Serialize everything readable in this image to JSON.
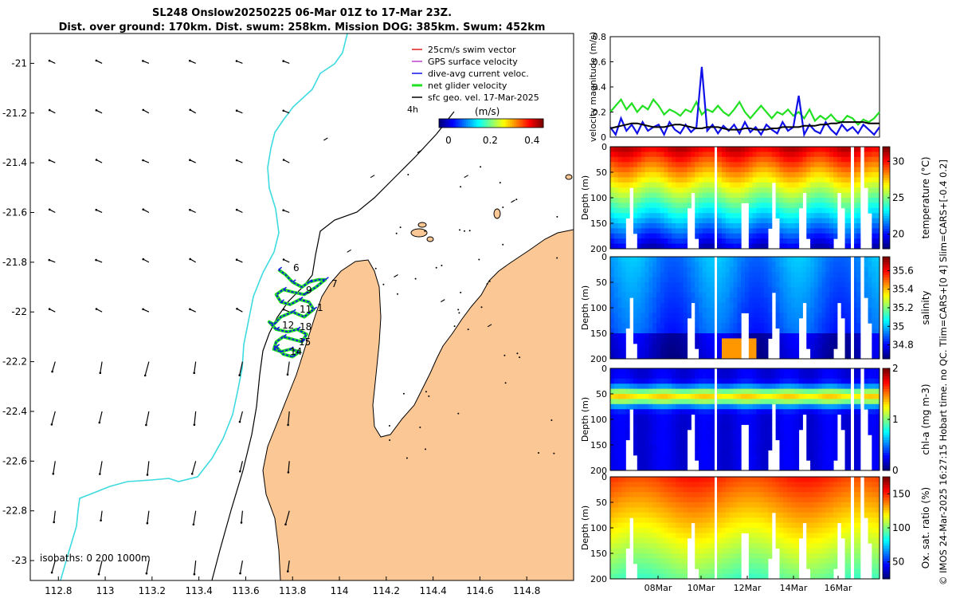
{
  "header": {
    "title_line1": "SL248 Onslow20250225 06-Mar 01Z to 17-Mar 23Z.",
    "title_line2": "Dist. over ground: 170km. Dist. swum: 258km. Mission DOG: 385km. Swum: 452km"
  },
  "footer": {
    "credit": "© IMOS 24-Mar-2025 16:27:15 Hobart time. no QC. Tlim=CARS+[0 4] Slim=CARS+[-0.4 0.2]"
  },
  "colors": {
    "land": "#fbc895",
    "coast_250m": "#3ddbe0",
    "swim_vector": "#e0201e",
    "gps_velocity": "#c03fd0",
    "dive_avg_current": "#1010e8",
    "net_glider_velocity": "#22e022",
    "sfc_geo_vel": "#000000"
  },
  "chart_data": [
    {
      "type": "map",
      "xlim": [
        112.68,
        115.0
      ],
      "ylim": [
        -23.08,
        -20.88
      ],
      "xticks": [
        "112.8",
        "113",
        "113.2",
        "113.4",
        "113.6",
        "113.8",
        "114",
        "114.2",
        "114.4",
        "114.6",
        "114.8"
      ],
      "xtick_values": [
        112.8,
        113.0,
        113.2,
        113.4,
        113.6,
        113.8,
        114.0,
        114.2,
        114.4,
        114.6,
        114.8
      ],
      "yticks": [
        "-21",
        "-21.2",
        "-21.4",
        "-21.6",
        "-21.8",
        "-22",
        "-22.2",
        "-22.4",
        "-22.6",
        "-22.8",
        "-23"
      ],
      "ytick_values": [
        -21.0,
        -21.2,
        -21.4,
        -21.6,
        -21.8,
        -22.0,
        -22.2,
        -22.4,
        -22.6,
        -22.8,
        -23.0
      ],
      "legend": [
        {
          "label": "25cm/s swim vector",
          "color": "#e0201e"
        },
        {
          "label": "GPS surface velocity",
          "color": "#c03fd0"
        },
        {
          "label": "dive-avg current veloc.",
          "color": "#1010e8"
        },
        {
          "label": "net glider velocity",
          "color": "#22e022"
        },
        {
          "label": "sfc geo. vel. 17-Mar-2025",
          "color": "#000000"
        }
      ],
      "legend_position": "top-right",
      "interval_label": "4h",
      "colorbar": {
        "label": "(m/s)",
        "ticks": [
          "0",
          "0.2",
          "0.4"
        ],
        "tick_values": [
          0,
          0.2,
          0.4
        ],
        "range": [
          0,
          0.5
        ]
      },
      "isobaths_label": "isobaths: 0   200  1000m",
      "track_labels": [
        "6",
        "9",
        "7",
        "1",
        "11",
        "12",
        "18",
        "15",
        "14"
      ],
      "track_lon": [
        113.74,
        113.77,
        113.8,
        113.84,
        113.87,
        113.91,
        113.94,
        113.9,
        113.85,
        113.8,
        113.76,
        113.73,
        113.75,
        113.79,
        113.83,
        113.87,
        113.89,
        113.85,
        113.8,
        113.75,
        113.72,
        113.7,
        113.73,
        113.78,
        113.82,
        113.86,
        113.84,
        113.8,
        113.76,
        113.73,
        113.72,
        113.75,
        113.79,
        113.83,
        113.8,
        113.76,
        113.73
      ],
      "track_lat": [
        -21.83,
        -21.85,
        -21.88,
        -21.9,
        -21.88,
        -21.87,
        -21.87,
        -21.9,
        -21.93,
        -21.92,
        -21.91,
        -21.93,
        -21.96,
        -21.97,
        -21.95,
        -21.96,
        -21.99,
        -22.02,
        -22.0,
        -22.02,
        -22.05,
        -22.04,
        -22.07,
        -22.08,
        -22.07,
        -22.09,
        -22.12,
        -22.11,
        -22.1,
        -22.12,
        -22.15,
        -22.16,
        -22.15,
        -22.16,
        -22.18,
        -22.17,
        -22.14
      ]
    },
    {
      "type": "line",
      "ylabel": "velocity magnitude (m/s)",
      "ylim": [
        0,
        0.8
      ],
      "yticks": [
        "0",
        "0.2",
        "0.4",
        "0.6",
        "0.8"
      ],
      "ytick_values": [
        0,
        0.2,
        0.4,
        0.6,
        0.8
      ],
      "series": [
        {
          "name": "net glider velocity",
          "color": "#22e022",
          "values": [
            0.2,
            0.25,
            0.3,
            0.22,
            0.27,
            0.2,
            0.25,
            0.22,
            0.3,
            0.25,
            0.18,
            0.22,
            0.2,
            0.17,
            0.22,
            0.2,
            0.28,
            0.18,
            0.22,
            0.2,
            0.25,
            0.2,
            0.17,
            0.22,
            0.28,
            0.2,
            0.15,
            0.2,
            0.25,
            0.2,
            0.15,
            0.2,
            0.18,
            0.22,
            0.17,
            0.2,
            0.15,
            0.22,
            0.13,
            0.17,
            0.14,
            0.18,
            0.13,
            0.12,
            0.17,
            0.15,
            0.1,
            0.14,
            0.12,
            0.15,
            0.2
          ]
        },
        {
          "name": "dive-avg current veloc.",
          "color": "#1010e8",
          "values": [
            0.08,
            0.02,
            0.15,
            0.05,
            0.1,
            0.03,
            0.12,
            0.05,
            0.08,
            0.1,
            0.02,
            0.12,
            0.06,
            0.03,
            0.1,
            0.04,
            0.08,
            0.56,
            0.05,
            0.1,
            0.03,
            0.09,
            0.05,
            0.1,
            0.03,
            0.12,
            0.04,
            0.08,
            0.02,
            0.1,
            0.06,
            0.03,
            0.12,
            0.05,
            0.08,
            0.33,
            0.02,
            0.1,
            0.05,
            0.03,
            0.12,
            0.06,
            0.02,
            0.1,
            0.05,
            0.08,
            0.03,
            0.1,
            0.06,
            0.02,
            0.08
          ]
        },
        {
          "name": "sfc geo. vel.",
          "color": "#000000",
          "values": [
            0.07,
            0.08,
            0.09,
            0.1,
            0.11,
            0.11,
            0.1,
            0.09,
            0.08,
            0.08,
            0.08,
            0.09,
            0.1,
            0.1,
            0.09,
            0.08,
            0.07,
            0.07,
            0.08,
            0.08,
            0.08,
            0.07,
            0.06,
            0.06,
            0.06,
            0.07,
            0.07,
            0.06,
            0.06,
            0.06,
            0.07,
            0.07,
            0.08,
            0.08,
            0.08,
            0.08,
            0.09,
            0.09,
            0.09,
            0.1,
            0.1,
            0.11,
            0.11,
            0.12,
            0.12,
            0.12,
            0.12,
            0.12,
            0.11,
            0.11,
            0.11
          ]
        }
      ]
    },
    {
      "type": "heatmap",
      "variable": "temperature",
      "cbar_label": "temperature (°C)",
      "cbar_ticks": [
        "20",
        "25",
        "30"
      ],
      "cbar_tick_values": [
        20,
        25,
        30
      ],
      "crange": [
        18,
        32
      ],
      "ylabel": "Depth (m)",
      "yticks": [
        "0",
        "50",
        "100",
        "150",
        "200"
      ],
      "ytick_values": [
        0,
        50,
        100,
        150,
        200
      ]
    },
    {
      "type": "heatmap",
      "variable": "salinity",
      "cbar_label": "salinity",
      "cbar_ticks": [
        "34.8",
        "35",
        "35.2",
        "35.4",
        "35.6"
      ],
      "cbar_tick_values": [
        34.8,
        35.0,
        35.2,
        35.4,
        35.6
      ],
      "crange": [
        34.65,
        35.75
      ],
      "ylabel": "Depth (m)",
      "yticks": [
        "0",
        "50",
        "100",
        "150",
        "200"
      ],
      "ytick_values": [
        0,
        50,
        100,
        150,
        200
      ]
    },
    {
      "type": "heatmap",
      "variable": "chl-a",
      "cbar_label": "chl-a (mg m-3)",
      "cbar_ticks": [
        "0",
        "1",
        "2"
      ],
      "cbar_tick_values": [
        0,
        1,
        2
      ],
      "crange": [
        0,
        2
      ],
      "ylabel": "Depth (m)",
      "yticks": [
        "0",
        "50",
        "100",
        "150",
        "200"
      ],
      "ytick_values": [
        0,
        50,
        100,
        150,
        200
      ]
    },
    {
      "type": "heatmap",
      "variable": "oxygen",
      "cbar_label": "Ox. sat. ratio (%)",
      "cbar_ticks": [
        "50",
        "100",
        "150"
      ],
      "cbar_tick_values": [
        50,
        100,
        150
      ],
      "crange": [
        25,
        175
      ],
      "ylabel": "Depth (m)",
      "yticks": [
        "0",
        "50",
        "100",
        "150",
        "200"
      ],
      "ytick_values": [
        0,
        50,
        100,
        150,
        200
      ],
      "xticks": [
        "08Mar",
        "10Mar",
        "12Mar",
        "14Mar",
        "16Mar"
      ]
    }
  ]
}
